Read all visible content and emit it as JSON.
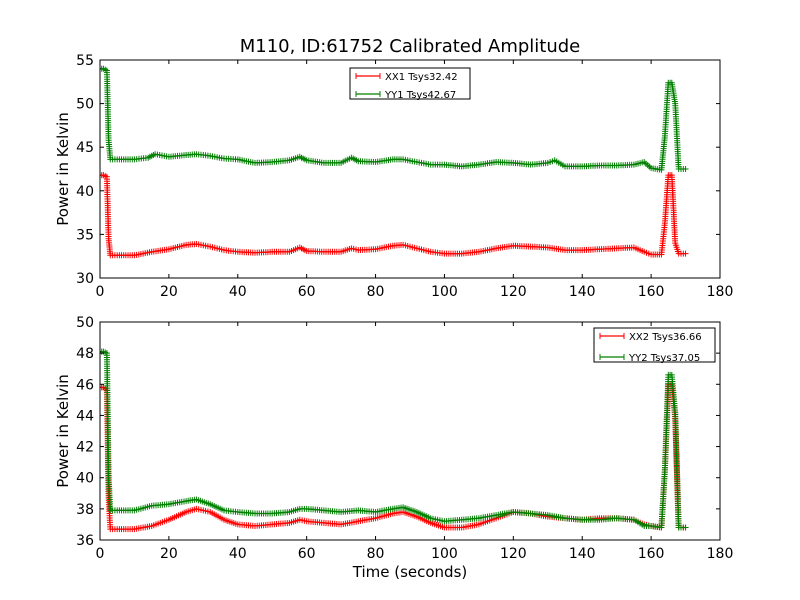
{
  "figure": {
    "title": "M110, ID:61752 Calibrated Amplitude",
    "xlabel": "Time (seconds)"
  },
  "chart_data": [
    {
      "type": "line",
      "title": "M110, ID:61752 Calibrated Amplitude",
      "xlabel": "",
      "ylabel": "Power in Kelvin",
      "xlim": [
        0,
        180
      ],
      "ylim": [
        30,
        55
      ],
      "xticks": [
        "0",
        "20",
        "40",
        "60",
        "80",
        "100",
        "120",
        "140",
        "160",
        "180"
      ],
      "yticks": [
        "30",
        "35",
        "40",
        "45",
        "50",
        "55"
      ],
      "grid": false,
      "legend_position": "top-center",
      "markers": "+",
      "series": [
        {
          "name": "XX1 Tsys32.42",
          "color": "#ff0000",
          "x": [
            0,
            1,
            2,
            2.5,
            3,
            5,
            10,
            15,
            20,
            25,
            28,
            32,
            36,
            40,
            45,
            50,
            55,
            58,
            60,
            65,
            70,
            73,
            75,
            80,
            85,
            88,
            92,
            96,
            100,
            105,
            110,
            115,
            120,
            125,
            130,
            135,
            140,
            145,
            150,
            155,
            158,
            160,
            163,
            164,
            165,
            166,
            167,
            168,
            170
          ],
          "y": [
            41.8,
            41.8,
            41.6,
            34.5,
            32.6,
            32.6,
            32.6,
            33.0,
            33.3,
            33.8,
            33.9,
            33.6,
            33.2,
            33.0,
            32.9,
            33.0,
            33.0,
            33.5,
            33.1,
            33.0,
            33.0,
            33.4,
            33.2,
            33.3,
            33.7,
            33.8,
            33.4,
            33.0,
            32.8,
            32.8,
            33.0,
            33.4,
            33.7,
            33.6,
            33.5,
            33.2,
            33.2,
            33.3,
            33.4,
            33.5,
            33.0,
            32.7,
            32.7,
            36.3,
            41.8,
            41.8,
            34.0,
            32.8,
            32.8
          ]
        },
        {
          "name": "YY1 Tsys42.67",
          "color": "#008000",
          "x": [
            0,
            1,
            2,
            2.5,
            3,
            5,
            10,
            14,
            16,
            20,
            25,
            28,
            32,
            36,
            40,
            45,
            50,
            55,
            58,
            60,
            65,
            70,
            73,
            75,
            80,
            85,
            88,
            92,
            96,
            100,
            105,
            110,
            115,
            120,
            125,
            130,
            132,
            135,
            140,
            145,
            150,
            155,
            158,
            160,
            163,
            164,
            165,
            166,
            167,
            168,
            170
          ],
          "y": [
            54.0,
            54.0,
            53.8,
            45.8,
            43.6,
            43.6,
            43.6,
            43.8,
            44.2,
            43.9,
            44.1,
            44.2,
            44.0,
            43.7,
            43.6,
            43.2,
            43.3,
            43.5,
            43.9,
            43.5,
            43.2,
            43.2,
            43.8,
            43.4,
            43.3,
            43.6,
            43.6,
            43.3,
            43.0,
            43.0,
            42.8,
            43.0,
            43.3,
            43.2,
            43.0,
            43.2,
            43.5,
            42.8,
            42.8,
            42.9,
            42.9,
            43.0,
            43.3,
            42.6,
            42.4,
            46.3,
            52.4,
            52.4,
            50.0,
            42.5,
            42.5
          ]
        }
      ]
    },
    {
      "type": "line",
      "title": "",
      "xlabel": "Time (seconds)",
      "ylabel": "Power in Kelvin",
      "xlim": [
        0,
        180
      ],
      "ylim": [
        36,
        50
      ],
      "xticks": [
        "0",
        "20",
        "40",
        "60",
        "80",
        "100",
        "120",
        "140",
        "160",
        "180"
      ],
      "yticks": [
        "36",
        "38",
        "40",
        "42",
        "44",
        "46",
        "48",
        "50"
      ],
      "grid": false,
      "legend_position": "top-right",
      "markers": "+",
      "series": [
        {
          "name": "XX2 Tsys36.66",
          "color": "#ff0000",
          "x": [
            0,
            1,
            2,
            2.5,
            3,
            5,
            10,
            15,
            20,
            25,
            28,
            32,
            36,
            40,
            45,
            50,
            55,
            58,
            60,
            65,
            70,
            75,
            80,
            85,
            88,
            92,
            96,
            100,
            105,
            110,
            115,
            120,
            125,
            130,
            135,
            140,
            145,
            150,
            155,
            158,
            160,
            163,
            164,
            165,
            166,
            167,
            168,
            170
          ],
          "y": [
            45.8,
            45.8,
            45.6,
            38.7,
            36.7,
            36.7,
            36.7,
            36.9,
            37.3,
            37.8,
            38.0,
            37.8,
            37.3,
            37.0,
            36.9,
            37.0,
            37.1,
            37.3,
            37.2,
            37.1,
            37.0,
            37.2,
            37.4,
            37.7,
            37.8,
            37.5,
            37.1,
            36.8,
            36.8,
            37.0,
            37.4,
            37.8,
            37.7,
            37.5,
            37.4,
            37.3,
            37.4,
            37.4,
            37.3,
            37.0,
            36.9,
            36.8,
            40.5,
            46.0,
            46.0,
            43.8,
            36.8,
            36.8
          ]
        },
        {
          "name": "YY2 Tsys37.05",
          "color": "#008000",
          "x": [
            0,
            1,
            2,
            2.5,
            3,
            5,
            10,
            15,
            20,
            25,
            28,
            32,
            36,
            40,
            45,
            50,
            55,
            58,
            60,
            65,
            70,
            75,
            80,
            85,
            88,
            92,
            96,
            100,
            105,
            110,
            115,
            120,
            125,
            130,
            135,
            140,
            145,
            150,
            155,
            158,
            160,
            163,
            164,
            165,
            166,
            167,
            168,
            170
          ],
          "y": [
            48.1,
            48.1,
            48.0,
            40.0,
            37.9,
            37.9,
            37.9,
            38.2,
            38.3,
            38.5,
            38.6,
            38.3,
            37.9,
            37.8,
            37.7,
            37.7,
            37.8,
            38.0,
            38.0,
            37.9,
            37.8,
            37.9,
            37.8,
            38.0,
            38.1,
            37.8,
            37.4,
            37.2,
            37.3,
            37.4,
            37.6,
            37.8,
            37.7,
            37.6,
            37.4,
            37.3,
            37.3,
            37.4,
            37.3,
            36.9,
            36.9,
            36.8,
            40.5,
            46.6,
            46.6,
            44.2,
            36.8,
            36.8
          ]
        }
      ]
    }
  ]
}
